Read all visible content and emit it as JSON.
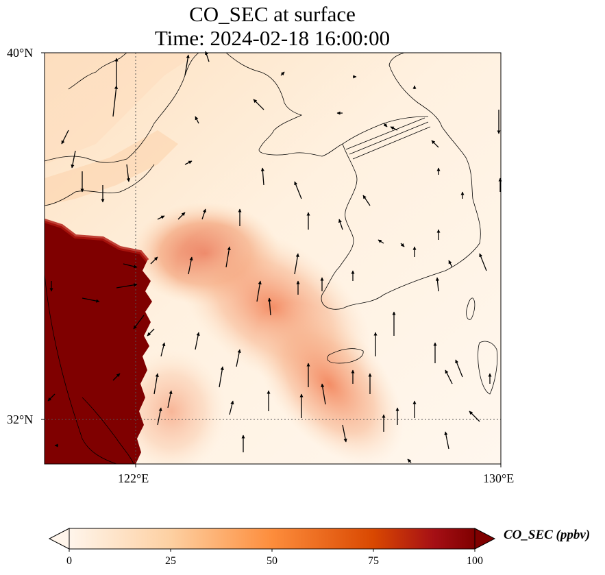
{
  "title": {
    "line1": "CO_SEC at surface",
    "line2": "Time: 2024-02-18 16:00:00"
  },
  "map": {
    "lat_range": [
      31.2,
      40.0
    ],
    "lon_range": [
      120.0,
      130.0
    ],
    "lat_labels": [
      "40°N",
      "32°N"
    ],
    "lon_labels": [
      "122°E",
      "130°E"
    ],
    "gridlines": {
      "lats": [
        32
      ],
      "lons": [
        122
      ],
      "style": "dotted"
    },
    "field": "CO_SEC",
    "colormap": [
      "#fff5eb",
      "#fdd0a2",
      "#fd8d3c",
      "#d94801",
      "#a50f15",
      "#7f0000"
    ],
    "high_region_color": "#7f0000",
    "coastline_color": "#000000"
  },
  "colorbar": {
    "label": "CO_SEC (ppbv)",
    "ticks": [
      "0",
      "25",
      "50",
      "75",
      "100"
    ],
    "min": 0,
    "max": 100,
    "extend": "both"
  }
}
